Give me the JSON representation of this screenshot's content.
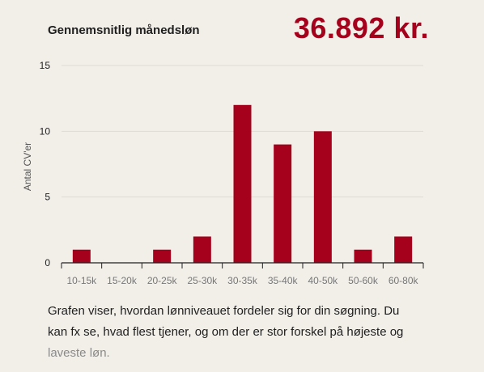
{
  "header": {
    "title": "Gennemsnitlig månedsløn",
    "value": "36.892 kr."
  },
  "description": {
    "line1": "Grafen viser, hvordan lønniveauet fordeler sig for din søgning. Du",
    "line2": "kan fx se, hvad flest tjener, og om der er stor forskel på højeste og",
    "line3": "laveste løn."
  },
  "chart_data": {
    "type": "bar",
    "categories": [
      "10-15k",
      "15-20k",
      "20-25k",
      "25-30k",
      "30-35k",
      "35-40k",
      "40-50k",
      "50-60k",
      "60-80k"
    ],
    "values": [
      1,
      0,
      1,
      2,
      12,
      9,
      10,
      1,
      2
    ],
    "ylabel": "Antal CV'er",
    "ylim": [
      0,
      15
    ],
    "yticks": [
      0,
      5,
      10,
      15
    ],
    "grid": true,
    "legend": "none",
    "bar_color": "#a5001c",
    "grid_color": "#dedad3",
    "axis_color": "#222222",
    "label_color": "#777777"
  }
}
